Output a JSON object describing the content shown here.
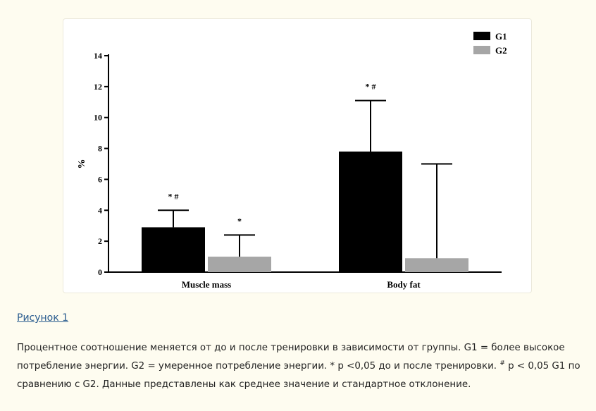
{
  "colors": {
    "page_bg": "#fefcf0",
    "card_bg": "#ffffff",
    "link": "#2a5c8f",
    "series_g1": "#000000",
    "series_g2": "#a6a6a6"
  },
  "chart_data": {
    "type": "bar",
    "ylabel": "%",
    "ylim": [
      0,
      14
    ],
    "yticks": [
      "0",
      "2",
      "4",
      "6",
      "8",
      "10",
      "12",
      "14"
    ],
    "categories": [
      "Muscle mass",
      "Body fat"
    ],
    "series": [
      {
        "name": "G1",
        "color": "#000000",
        "values": [
          2.9,
          7.8
        ],
        "error_upper": [
          4.0,
          11.1
        ],
        "annotations": [
          "* #",
          "* #"
        ]
      },
      {
        "name": "G2",
        "color": "#a6a6a6",
        "values": [
          1.0,
          0.9
        ],
        "error_upper": [
          2.4,
          7.0
        ],
        "annotations": [
          "*",
          ""
        ]
      }
    ],
    "legend_position": "top-right",
    "grid": false
  },
  "figure": {
    "link_label": "Рисунок 1",
    "caption_part1": "Процентное соотношение меняется от до и после тренировки в зависимости от группы. G1 = более высокое потребление энергии. G2 = умеренное потребление энергии. * p <0,05 до и после тренировки. ",
    "caption_sup": "#",
    "caption_part2": " p < 0,05 G1 по сравнению с G2. Данные представлены как среднее значение и стандартное отклонение."
  }
}
